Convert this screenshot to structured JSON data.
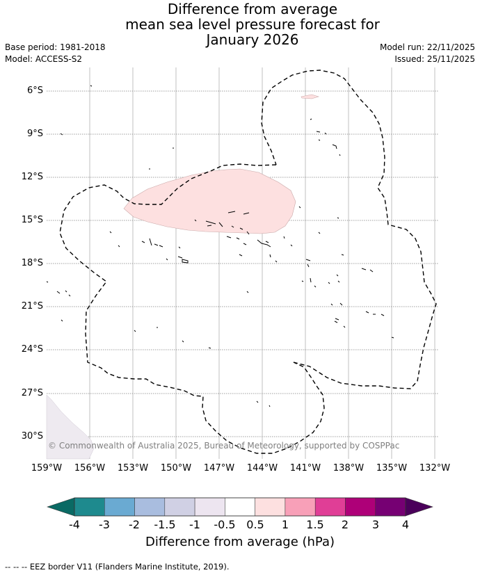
{
  "title": {
    "line1": "Difference from average",
    "line2": "mean sea level pressure forecast for",
    "line3": "January 2026"
  },
  "meta": {
    "base_period": "Base period: 1981-2018",
    "model": "Model: ACCESS-S2",
    "model_run": "Model run: 22/11/2025",
    "issued": "Issued: 25/11/2025"
  },
  "map": {
    "copyright": "© Commonwealth of Australia 2025, Bureau of Meteorology, supported by COSPPac",
    "latitude_labels": [
      "6°S",
      "9°S",
      "12°S",
      "15°S",
      "18°S",
      "21°S",
      "24°S",
      "27°S",
      "30°S"
    ],
    "longitude_labels": [
      "159°W",
      "156°W",
      "153°W",
      "150°W",
      "147°W",
      "144°W",
      "141°W",
      "138°W",
      "135°W",
      "132°W"
    ],
    "anomaly_region": {
      "category": "0.5 to 1",
      "color": "#fddcdc",
      "approx_center": "13.5°S 146°W"
    }
  },
  "colorbar": {
    "ticks": [
      "-4",
      "-3",
      "-2",
      "-1.5",
      "-1",
      "-0.5",
      "0.5",
      "1",
      "1.5",
      "2",
      "3",
      "4"
    ],
    "colors": [
      "#1e8a8e",
      "#6aaad2",
      "#a9bddf",
      "#d0d0e4",
      "#ede5f0",
      "#ffffff",
      "#fde0e0",
      "#f8a0b8",
      "#e03e96",
      "#ae0078",
      "#760073"
    ],
    "below_color": "#0a6a64",
    "above_color": "#4a005a",
    "label": "Difference from average (hPa)"
  },
  "legend": {
    "eez_marker": "--  --  --",
    "eez": "EEZ border V11 (Flanders Marine Institute, 2019)."
  }
}
